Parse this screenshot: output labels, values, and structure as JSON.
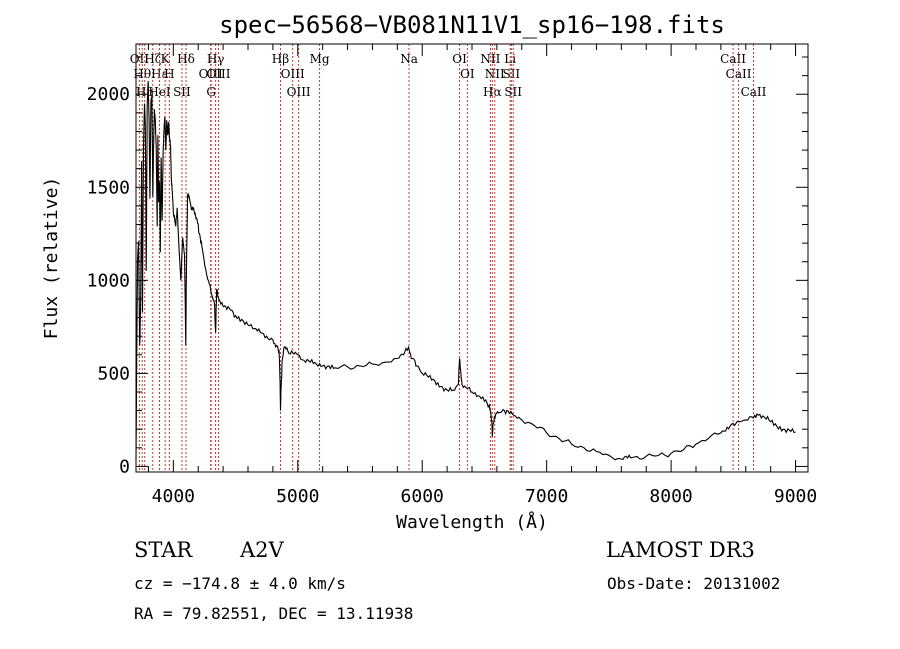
{
  "chart_data": {
    "type": "line",
    "title": "spec−56568−VB081N11V1_sp16−198.fits",
    "xlabel": "Wavelength (Å)",
    "ylabel": "Flux (relative)",
    "xlim": [
      3700,
      9100
    ],
    "ylim": [
      -30,
      2270
    ],
    "xticks": [
      4000,
      5000,
      6000,
      7000,
      8000,
      9000
    ],
    "yticks": [
      0,
      500,
      1000,
      1500,
      2000
    ],
    "grid": false,
    "line_color": "#000000",
    "marker_color": "#c0392b",
    "series": [
      {
        "name": "flux",
        "x": [
          3700,
          3712,
          3720,
          3730,
          3738,
          3745,
          3752,
          3760,
          3768,
          3775,
          3782,
          3790,
          3798,
          3805,
          3812,
          3820,
          3828,
          3835,
          3840,
          3848,
          3855,
          3862,
          3870,
          3876,
          3882,
          3889,
          3895,
          3902,
          3910,
          3918,
          3925,
          3932,
          3940,
          3947,
          3955,
          3962,
          3970,
          3978,
          3985,
          3992,
          4000,
          4010,
          4020,
          4030,
          4045,
          4060,
          4075,
          4090,
          4100,
          4105,
          4115,
          4130,
          4145,
          4160,
          4175,
          4190,
          4210,
          4230,
          4260,
          4290,
          4310,
          4330,
          4340,
          4348,
          4360,
          4390,
          4420,
          4460,
          4500,
          4550,
          4600,
          4650,
          4700,
          4750,
          4800,
          4830,
          4850,
          4858,
          4861,
          4866,
          4875,
          4890,
          4920,
          4960,
          5000,
          5050,
          5100,
          5150,
          5200,
          5250,
          5300,
          5400,
          5500,
          5600,
          5700,
          5800,
          5850,
          5890,
          5920,
          5960,
          6000,
          6050,
          6100,
          6150,
          6200,
          6250,
          6290,
          6300,
          6310,
          6320,
          6360,
          6400,
          6450,
          6500,
          6540,
          6560,
          6563,
          6570,
          6590,
          6620,
          6660,
          6700,
          6750,
          6800,
          6900,
          7000,
          7100,
          7200,
          7300,
          7400,
          7500,
          7600,
          7650,
          7700,
          7800,
          7900,
          8000,
          8100,
          8200,
          8300,
          8400,
          8450,
          8500,
          8542,
          8600,
          8662,
          8700,
          8750,
          8800,
          8850,
          8900,
          8950,
          9000
        ],
        "y": [
          40,
          1100,
          1210,
          650,
          900,
          1640,
          830,
          1710,
          1950,
          1830,
          1050,
          1940,
          2070,
          1870,
          1440,
          1960,
          1990,
          1450,
          1680,
          1920,
          1860,
          1720,
          1290,
          1780,
          1420,
          1530,
          1150,
          1660,
          1320,
          1690,
          1810,
          1880,
          1700,
          1860,
          1780,
          1850,
          1760,
          1720,
          1530,
          1480,
          1370,
          1330,
          1290,
          1390,
          1180,
          1000,
          1230,
          1140,
          650,
          1040,
          1460,
          1440,
          1380,
          1390,
          1360,
          1330,
          1250,
          1180,
          1060,
          980,
          920,
          880,
          720,
          950,
          910,
          880,
          860,
          840,
          810,
          790,
          760,
          740,
          720,
          700,
          680,
          650,
          620,
          450,
          300,
          420,
          570,
          640,
          620,
          610,
          600,
          570,
          560,
          550,
          540,
          540,
          530,
          535,
          540,
          550,
          560,
          580,
          600,
          640,
          580,
          540,
          500,
          480,
          460,
          430,
          410,
          410,
          440,
          580,
          510,
          440,
          420,
          400,
          380,
          350,
          330,
          240,
          160,
          230,
          280,
          290,
          300,
          285,
          270,
          250,
          220,
          180,
          150,
          120,
          100,
          80,
          60,
          40,
          45,
          50,
          55,
          60,
          70,
          90,
          120,
          150,
          180,
          210,
          230,
          240,
          250,
          260,
          275,
          265,
          240,
          215,
          200,
          195,
          185
        ]
      }
    ],
    "markers": [
      {
        "label": "OII",
        "x": 3727
      },
      {
        "label": "Hθ",
        "x": 3750
      },
      {
        "label": "Hη",
        "x": 3770
      },
      {
        "label": "Hζ",
        "x": 3835
      },
      {
        "label": "Hε",
        "x": 3889
      },
      {
        "label": "HeI",
        "x": 3889
      },
      {
        "label": "K",
        "x": 3934
      },
      {
        "label": "H",
        "x": 3968
      },
      {
        "label": "SII",
        "x": 4069
      },
      {
        "label": "Hδ",
        "x": 4102
      },
      {
        "label": "OIII",
        "x": 4300
      },
      {
        "label": "G",
        "x": 4304
      },
      {
        "label": "Hγ",
        "x": 4340
      },
      {
        "label": "OIII",
        "x": 4363
      },
      {
        "label": "Hβ",
        "x": 4861
      },
      {
        "label": "OIII",
        "x": 4959
      },
      {
        "label": "OIII",
        "x": 5007
      },
      {
        "label": "Mg",
        "x": 5175
      },
      {
        "label": "Na",
        "x": 5894
      },
      {
        "label": "OI",
        "x": 6300
      },
      {
        "label": "OI",
        "x": 6363
      },
      {
        "label": "NII",
        "x": 6548
      },
      {
        "label": "Hα",
        "x": 6563
      },
      {
        "label": "NII",
        "x": 6583
      },
      {
        "label": "Li",
        "x": 6707
      },
      {
        "label": "SII",
        "x": 6716
      },
      {
        "label": "SII",
        "x": 6731
      },
      {
        "label": "CaII",
        "x": 8498
      },
      {
        "label": "CaII",
        "x": 8542
      },
      {
        "label": "CaII",
        "x": 8662
      }
    ]
  },
  "info": {
    "class": "STAR",
    "subclass": "A2V",
    "survey": "LAMOST DR3",
    "cz": "cz = −174.8 ± 4.0 km/s",
    "obs_date": "Obs-Date: 20131002",
    "coords": "RA =  79.82551, DEC =  13.11938"
  }
}
